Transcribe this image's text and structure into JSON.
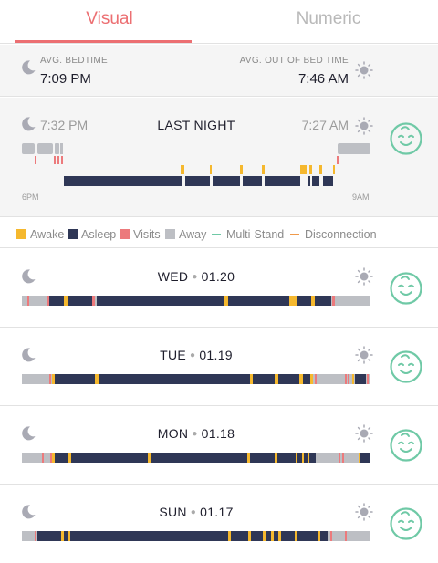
{
  "tabs": [
    {
      "label": "Visual",
      "active": true
    },
    {
      "label": "Numeric",
      "active": false
    }
  ],
  "averages": {
    "bedtime_label": "AVG. BEDTIME",
    "bedtime_value": "7:09 PM",
    "outofbed_label": "AVG. OUT OF BED TIME",
    "outofbed_value": "7:46 AM"
  },
  "last_night": {
    "title": "LAST NIGHT",
    "start_time": "7:32 PM",
    "end_time": "7:27 AM",
    "axis_start": "6PM",
    "axis_end": "9AM"
  },
  "legend": [
    {
      "label": "Awake",
      "color": "#f5b82e",
      "kind": "square"
    },
    {
      "label": "Asleep",
      "color": "#2f3756",
      "kind": "square"
    },
    {
      "label": "Visits",
      "color": "#ec7a7c",
      "kind": "square"
    },
    {
      "label": "Away",
      "color": "#bdbfc4",
      "kind": "square"
    },
    {
      "label": "Multi-Stand",
      "color": "#6fc9a6",
      "kind": "line"
    },
    {
      "label": "Disconnection",
      "color": "#f09a4a",
      "kind": "line"
    }
  ],
  "colors": {
    "awake": "#f5b82e",
    "asleep": "#2f3756",
    "visits": "#ec7a7c",
    "away": "#bdbfc4",
    "accent": "#ec6f72",
    "baby": "#6fc9a6",
    "icon": "#a9aab4"
  },
  "icons": {
    "bedtime": "moon-icon",
    "wake": "sun-icon",
    "status": "happy-baby-icon"
  },
  "days": [
    {
      "weekday": "WED",
      "date": "01.20"
    },
    {
      "weekday": "TUE",
      "date": "01.19"
    },
    {
      "weekday": "MON",
      "date": "01.18"
    },
    {
      "weekday": "SUN",
      "date": "01.17"
    }
  ]
}
